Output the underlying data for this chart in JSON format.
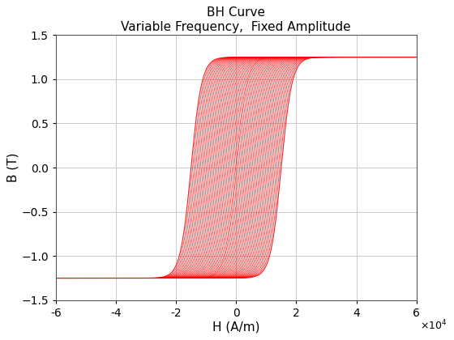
{
  "title_line1": "BH Curve",
  "title_line2": "Variable Frequency,  Fixed Amplitude",
  "xlabel": "H (A/m)",
  "ylabel": "B (T)",
  "xlim": [
    -60000,
    60000
  ],
  "ylim": [
    -1.5,
    1.5
  ],
  "xticks": [
    -60000,
    -40000,
    -20000,
    0,
    20000,
    40000,
    60000
  ],
  "yticks": [
    -1.5,
    -1.0,
    -0.5,
    0,
    0.5,
    1.0,
    1.5
  ],
  "line_color": "#FF0000",
  "bg_color": "#FFFFFF",
  "grid_color": "#CCCCCC",
  "Hmax": 60000,
  "Bsat": 1.25,
  "num_loops": 30,
  "Hc_max": 15000,
  "Hc_min": 200,
  "k_steep": 0.00028
}
